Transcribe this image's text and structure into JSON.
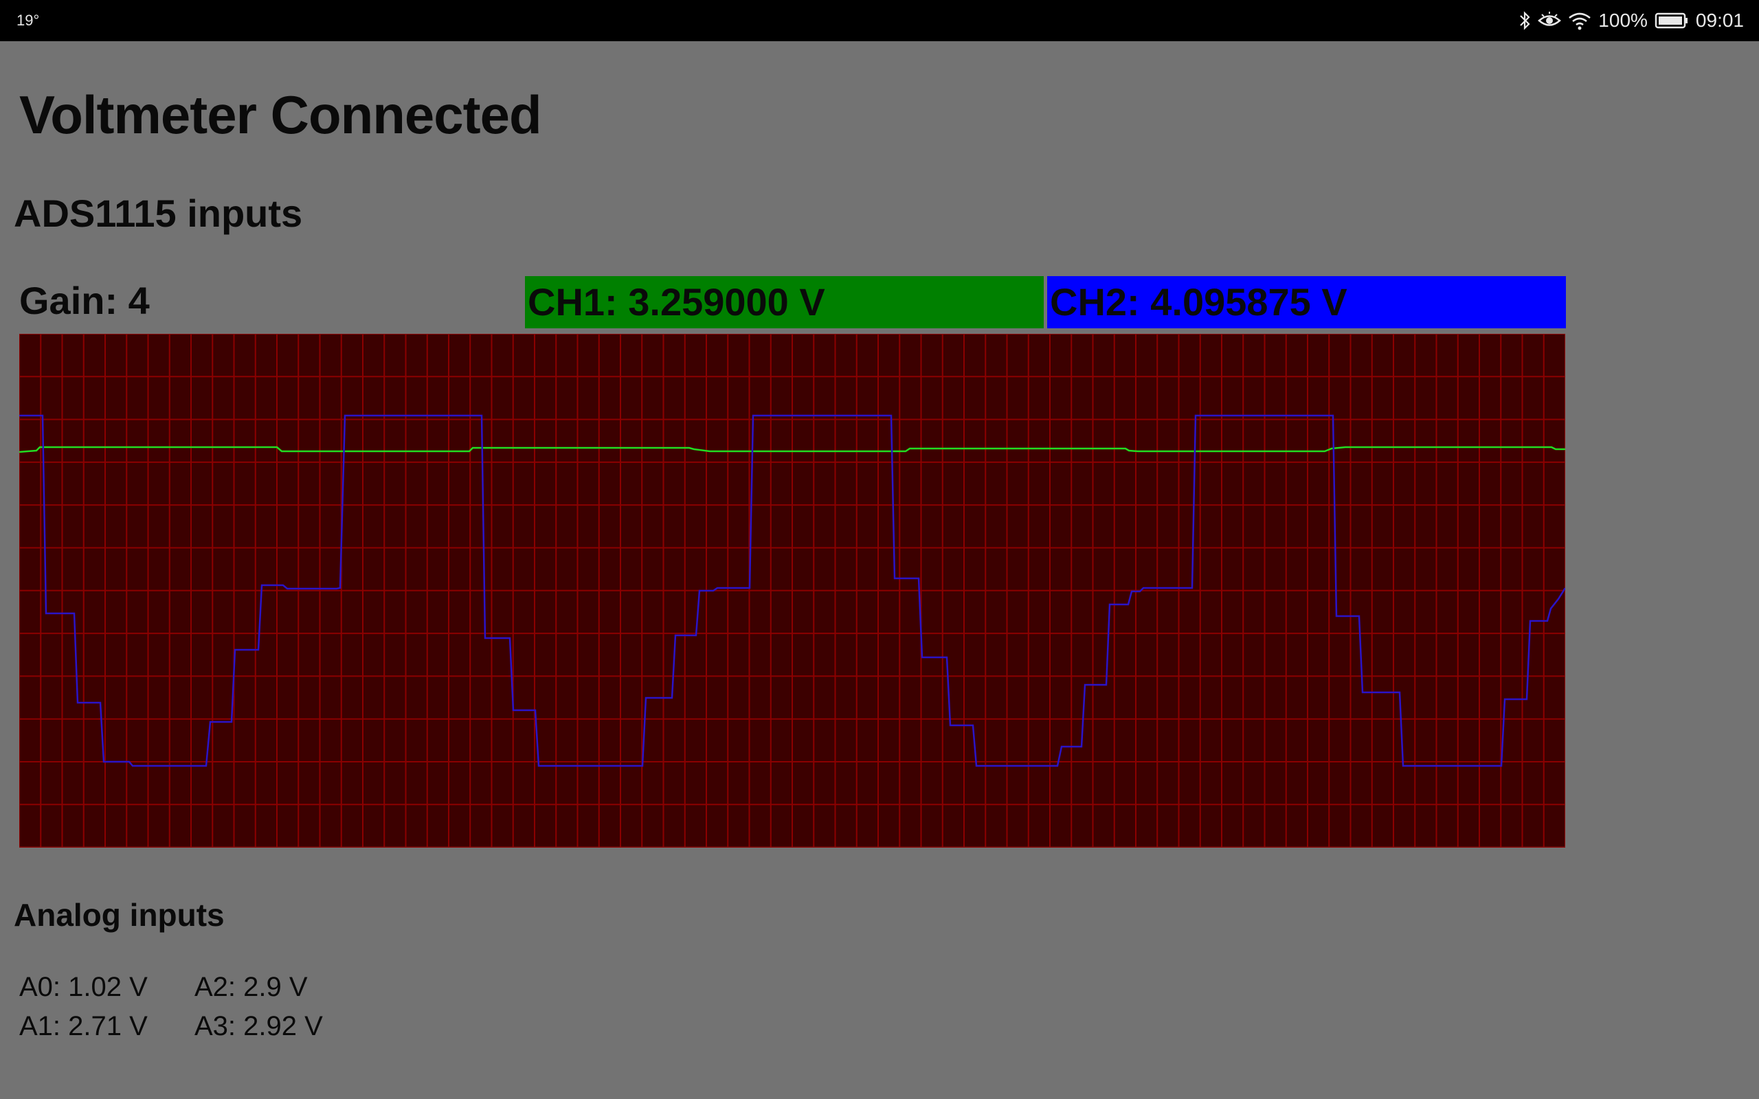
{
  "status_bar": {
    "temperature": "19°",
    "battery": "100%",
    "time": "09:01",
    "icons": [
      "bluetooth-icon",
      "eye-icon",
      "wifi-icon",
      "battery-icon"
    ]
  },
  "title": "Voltmeter Connected",
  "ads_section": {
    "heading": "ADS1115 inputs",
    "gain_label": "Gain: 4",
    "ch1_label": "CH1: 3.259000 V",
    "ch2_label": "CH2: 4.095875 V",
    "ch1_color": "#008000",
    "ch2_color": "#0000ff"
  },
  "scope": {
    "background_color": "#3c0000",
    "grid_color": "#8b0000",
    "grid": true,
    "ch1_trace_color": "#22dd22",
    "ch2_trace_color": "#2a14c8"
  },
  "analog_section": {
    "heading": "Analog inputs",
    "a0": "A0: 1.02 V",
    "a1": "A1: 2.71 V",
    "a2": "A2: 2.9 V",
    "a3": "A3: 2.92 V"
  }
}
